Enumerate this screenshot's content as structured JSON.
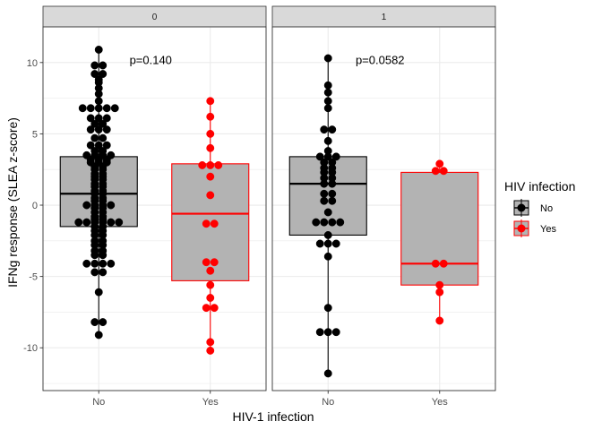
{
  "chart_data": {
    "type": "box",
    "xlabel": "HIV-1 infection",
    "ylabel": "IFNg response (SLEA z-score)",
    "categories": [
      "No",
      "Yes"
    ],
    "ylim": [
      -13,
      12.5
    ],
    "yticks": [
      -10,
      -5,
      0,
      5,
      10
    ],
    "grid": true,
    "legend": {
      "title": "HIV infection",
      "position": "right",
      "items": [
        {
          "label": "No",
          "color": "#000000"
        },
        {
          "label": "Yes",
          "color": "#ff0000"
        }
      ]
    },
    "colors": {
      "No": "#000000",
      "Yes": "#ff0000",
      "box_fill": "#b3b3b3",
      "strip_fill": "#d9d9d9"
    },
    "facets": [
      {
        "label": "0",
        "annotation": "p=0.140",
        "groups": [
          {
            "category": "No",
            "box": {
              "q1": -1.5,
              "median": 0.8,
              "q3": 3.4,
              "whisker_low": -9.1,
              "whisker_high": 10.9
            },
            "points": [
              10.9,
              9.8,
              9.8,
              9.2,
              9.2,
              8.8,
              8.6,
              8.2,
              7.8,
              7.3,
              6.8,
              6.8,
              6.8,
              6.8,
              6.8,
              6.1,
              6.1,
              6.1,
              5.7,
              5.7,
              5.3,
              5.3,
              5.3,
              4.7,
              4.7,
              4.2,
              4.2,
              4.2,
              3.8,
              3.8,
              3.5,
              3.5,
              3.5,
              3.5,
              3.2,
              3.2,
              3.2,
              3.0,
              3.0,
              3.0,
              2.7,
              2.7,
              2.5,
              2.5,
              2.2,
              2.2,
              2.0,
              2.0,
              1.8,
              1.8,
              1.5,
              1.5,
              1.3,
              1.3,
              1.0,
              1.0,
              0.8,
              0.8,
              0.5,
              0.5,
              0.3,
              0.3,
              0.0,
              0.0,
              0.0,
              0.0,
              -0.2,
              -0.2,
              -0.5,
              -0.5,
              -0.8,
              -0.8,
              -1.0,
              -1.0,
              -1.2,
              -1.2,
              -1.2,
              -1.2,
              -1.2,
              -1.2,
              -1.5,
              -1.5,
              -1.8,
              -1.8,
              -2.1,
              -2.1,
              -2.5,
              -2.5,
              -2.8,
              -2.8,
              -3.2,
              -3.2,
              -3.5,
              -3.5,
              -4.1,
              -4.1,
              -4.1,
              -4.1,
              -4.7,
              -4.7,
              -6.1,
              -8.2,
              -8.2,
              -9.1
            ]
          },
          {
            "category": "Yes",
            "box": {
              "q1": -5.3,
              "median": -0.6,
              "q3": 2.9,
              "whisker_low": -10.2,
              "whisker_high": 7.3
            },
            "points": [
              7.3,
              6.2,
              5.0,
              4.0,
              2.8,
              2.8,
              2.8,
              2.0,
              0.7,
              -1.3,
              -1.3,
              -4.0,
              -4.0,
              -4.6,
              -5.6,
              -6.5,
              -7.2,
              -7.2,
              -9.6,
              -10.2
            ]
          }
        ]
      },
      {
        "label": "1",
        "annotation": "p=0.0582",
        "groups": [
          {
            "category": "No",
            "box": {
              "q1": -2.1,
              "median": 1.5,
              "q3": 3.4,
              "whisker_low": -11.8,
              "whisker_high": 10.3
            },
            "points": [
              10.3,
              8.4,
              7.9,
              7.3,
              6.8,
              5.3,
              5.3,
              4.5,
              3.8,
              3.4,
              3.4,
              3.4,
              3.0,
              3.0,
              2.6,
              2.6,
              2.3,
              2.3,
              1.9,
              1.9,
              1.5,
              1.5,
              0.8,
              0.8,
              0.3,
              0.3,
              -0.5,
              -1.2,
              -1.2,
              -1.2,
              -1.2,
              -2.1,
              -2.7,
              -2.7,
              -2.7,
              -3.6,
              -7.2,
              -8.9,
              -8.9,
              -8.9,
              -11.8
            ]
          },
          {
            "category": "Yes",
            "box": {
              "q1": -5.6,
              "median": -4.1,
              "q3": 2.3,
              "whisker_low": -8.1,
              "whisker_high": 2.9
            },
            "points": [
              2.9,
              2.4,
              2.4,
              -4.1,
              -4.1,
              -5.6,
              -6.1,
              -8.1
            ]
          }
        ]
      }
    ]
  }
}
